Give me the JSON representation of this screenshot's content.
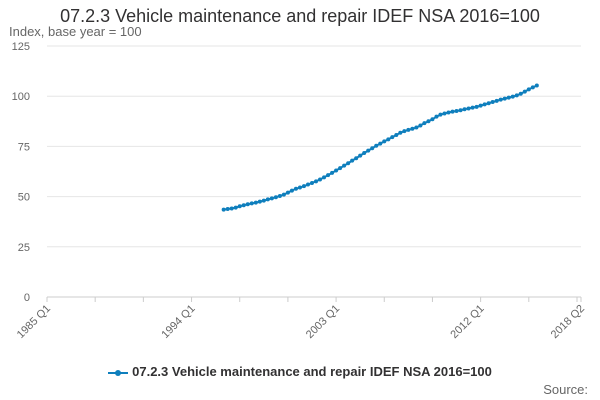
{
  "colors": {
    "series": "#0f7fbd",
    "grid": "#e6e6e6",
    "axis": "#cccccc"
  },
  "legend_icon": "line-with-dot-icon",
  "source_label": "Source:",
  "chart_data": {
    "type": "line",
    "title": "07.2.3 Vehicle maintenance and repair IDEF NSA 2016=100",
    "ylabel": "Index, base year = 100",
    "xlabel": "",
    "ylim": [
      0,
      125
    ],
    "yticks": [
      0,
      25,
      50,
      75,
      100,
      125
    ],
    "x_start": "1985 Q1",
    "x_end": "2018 Q2",
    "xticks": [
      "1985 Q1",
      "1994 Q1",
      "2003 Q1",
      "2012 Q1",
      "2018 Q2"
    ],
    "grid": true,
    "legend_position": "bottom",
    "series": [
      {
        "name": "07.2.3 Vehicle maintenance and repair IDEF NSA 2016=100",
        "start": "1996 Q1",
        "values": [
          43.5,
          43.8,
          44.1,
          44.5,
          45.2,
          45.7,
          46.2,
          46.6,
          47.0,
          47.5,
          48.0,
          48.6,
          49.1,
          49.7,
          50.3,
          51.0,
          52.0,
          53.0,
          53.9,
          54.5,
          55.2,
          56.0,
          56.8,
          57.6,
          58.5,
          59.6,
          60.7,
          61.8,
          63.0,
          64.2,
          65.4,
          66.6,
          67.9,
          69.1,
          70.4,
          71.7,
          72.9,
          74.1,
          75.3,
          76.4,
          77.5,
          78.5,
          79.6,
          80.7,
          81.8,
          82.6,
          83.2,
          83.8,
          84.4,
          85.4,
          86.6,
          87.5,
          88.5,
          89.8,
          90.8,
          91.4,
          91.9,
          92.3,
          92.6,
          93.0,
          93.5,
          93.9,
          94.3,
          94.7,
          95.3,
          95.9,
          96.5,
          97.1,
          97.7,
          98.3,
          98.8,
          99.3,
          99.8,
          100.4,
          101.2,
          102.3,
          103.4,
          104.4,
          105.3
        ]
      }
    ]
  }
}
